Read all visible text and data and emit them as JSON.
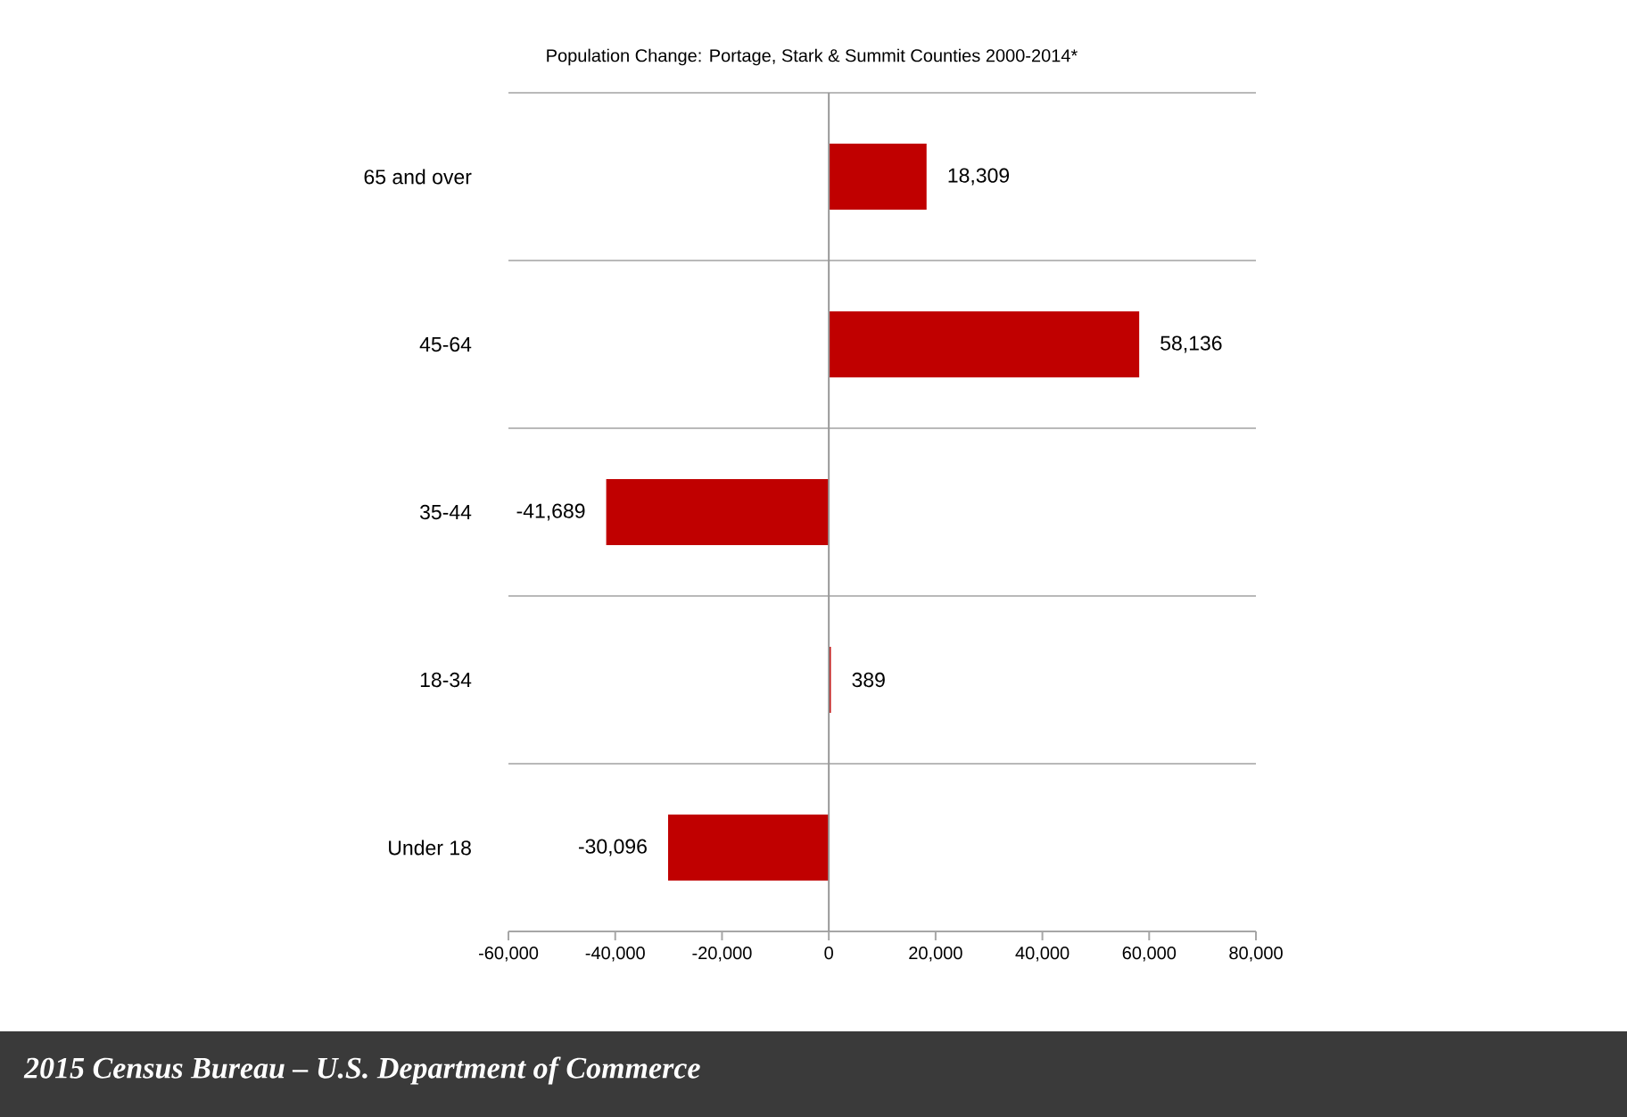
{
  "chart_data": {
    "type": "bar",
    "orientation": "horizontal",
    "title": "Population Change: Portage, Stark & Summit Counties 2000-2014*",
    "categories": [
      "65 and over",
      "45-64",
      "35-44",
      "18-34",
      "Under 18"
    ],
    "values": [
      18309,
      58136,
      -41689,
      389,
      -30096
    ],
    "value_labels": [
      "18,309",
      "58,136",
      "-41,689",
      "389",
      "-30,096"
    ],
    "color": "#c00000",
    "xlim": [
      -60000,
      80000
    ],
    "xticks": [
      {
        "value": -60000,
        "label": "-60,000"
      },
      {
        "value": -40000,
        "label": "-40,000"
      },
      {
        "value": -20000,
        "label": "-20,000"
      },
      0,
      {
        "value": 20000,
        "label": "20,000"
      },
      {
        "value": 40000,
        "label": "40,000"
      },
      {
        "value": 60000,
        "label": "60,000"
      },
      {
        "value": 80000,
        "label": "80,000"
      }
    ],
    "grid": "y",
    "annotations": [
      "2015 Census Bureau – U.S. Department of Commerce"
    ]
  }
}
